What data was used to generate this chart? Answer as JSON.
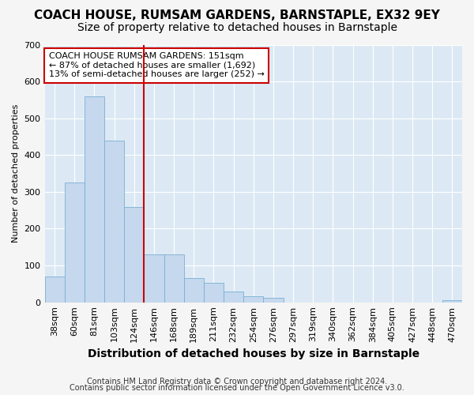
{
  "title": "COACH HOUSE, RUMSAM GARDENS, BARNSTAPLE, EX32 9EY",
  "subtitle": "Size of property relative to detached houses in Barnstaple",
  "xlabel": "Distribution of detached houses by size in Barnstaple",
  "ylabel": "Number of detached properties",
  "categories": [
    "38sqm",
    "60sqm",
    "81sqm",
    "103sqm",
    "124sqm",
    "146sqm",
    "168sqm",
    "189sqm",
    "211sqm",
    "232sqm",
    "254sqm",
    "276sqm",
    "297sqm",
    "319sqm",
    "340sqm",
    "362sqm",
    "384sqm",
    "405sqm",
    "427sqm",
    "448sqm",
    "470sqm"
  ],
  "values": [
    70,
    325,
    560,
    440,
    258,
    130,
    130,
    65,
    52,
    30,
    17,
    12,
    0,
    0,
    0,
    0,
    0,
    0,
    0,
    0,
    5
  ],
  "bar_color": "#c5d8ed",
  "bar_edge_color": "#7bafd4",
  "red_line_index": 5,
  "highlight_color": "#cc0000",
  "annotation_lines": [
    "COACH HOUSE RUMSAM GARDENS: 151sqm",
    "← 87% of detached houses are smaller (1,692)",
    "13% of semi-detached houses are larger (252) →"
  ],
  "annotation_box_facecolor": "#ffffff",
  "annotation_box_edgecolor": "#cc0000",
  "ylim": [
    0,
    700
  ],
  "yticks": [
    0,
    100,
    200,
    300,
    400,
    500,
    600,
    700
  ],
  "footer1": "Contains HM Land Registry data © Crown copyright and database right 2024.",
  "footer2": "Contains public sector information licensed under the Open Government Licence v3.0.",
  "fig_facecolor": "#f5f5f5",
  "plot_facecolor": "#dce9f5",
  "grid_color": "#ffffff",
  "title_fontsize": 11,
  "subtitle_fontsize": 10,
  "xlabel_fontsize": 10,
  "ylabel_fontsize": 8,
  "tick_fontsize": 8,
  "annotation_fontsize": 8,
  "footer_fontsize": 7
}
